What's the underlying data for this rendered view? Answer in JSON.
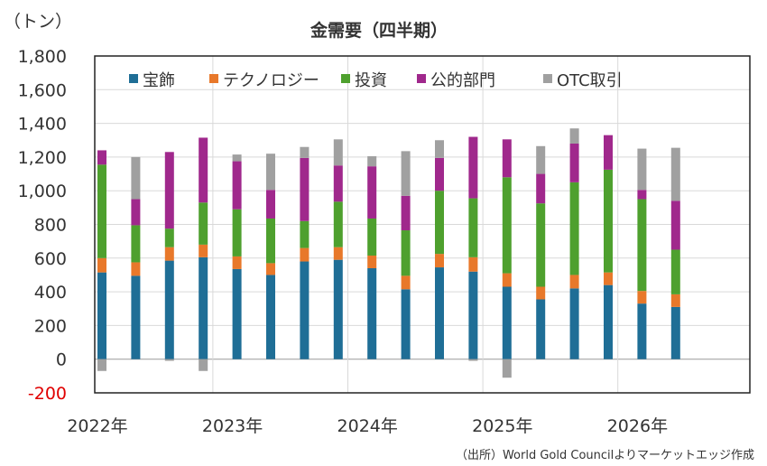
{
  "chart_data": {
    "type": "bar",
    "stacked": true,
    "title": "金需要（四半期）",
    "unit_label": "（トン）",
    "ylim": [
      -200,
      1800
    ],
    "yticks": [
      "1,800",
      "1,600",
      "1,400",
      "1,200",
      "1,000",
      "800",
      "600",
      "400",
      "200",
      "0",
      "-200"
    ],
    "ytick_values": [
      1800,
      1600,
      1400,
      1200,
      1000,
      800,
      600,
      400,
      200,
      0,
      -200
    ],
    "year_labels": [
      "2022年",
      "2023年",
      "2024年",
      "2025年",
      "2026年"
    ],
    "grid": true,
    "legend_position": "top",
    "categories": [
      "2022Q1",
      "2022Q2",
      "2022Q3",
      "2022Q4",
      "2023Q1",
      "2023Q2",
      "2023Q3",
      "2023Q4",
      "2024Q1",
      "2024Q2",
      "2024Q3",
      "2024Q4",
      "2025Q1",
      "2025Q2",
      "2025Q3",
      "2025Q4",
      "2026Q1",
      "2026Q2"
    ],
    "series": [
      {
        "name": "宝飾",
        "color": "#1f6e96",
        "values": [
          515,
          495,
          585,
          605,
          535,
          500,
          580,
          590,
          540,
          415,
          545,
          520,
          430,
          355,
          420,
          440,
          330,
          310
        ]
      },
      {
        "name": "テクノロジー",
        "color": "#e8782a",
        "values": [
          85,
          80,
          80,
          75,
          75,
          70,
          80,
          75,
          75,
          80,
          80,
          85,
          80,
          75,
          80,
          75,
          75,
          75
        ]
      },
      {
        "name": "投資",
        "color": "#4ea02e",
        "values": [
          555,
          220,
          110,
          250,
          280,
          265,
          160,
          270,
          220,
          270,
          375,
          350,
          570,
          495,
          550,
          610,
          545,
          265
        ]
      },
      {
        "name": "公的部門",
        "color": "#a0288c",
        "values": [
          85,
          155,
          455,
          385,
          285,
          170,
          375,
          215,
          310,
          205,
          195,
          365,
          225,
          175,
          230,
          205,
          55,
          290
        ]
      },
      {
        "name": "OTC取引",
        "color": "#a0a0a0",
        "values": [
          -70,
          250,
          -10,
          -70,
          40,
          215,
          65,
          155,
          60,
          265,
          105,
          -10,
          -110,
          165,
          90,
          0,
          245,
          315
        ]
      }
    ]
  },
  "source_note": "（出所）World Gold Councilよりマーケットエッジ作成"
}
